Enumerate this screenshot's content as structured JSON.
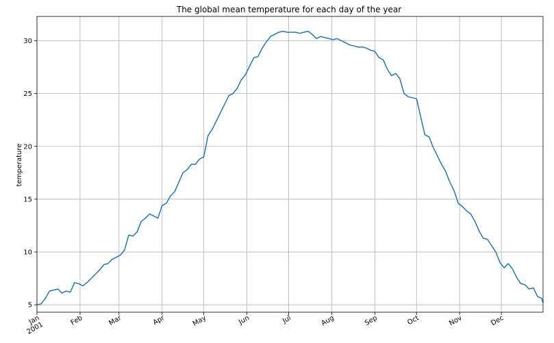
{
  "chart_data": {
    "type": "line",
    "title": "The global mean temperature for each day of the year",
    "xlabel": "",
    "ylabel": "temperature",
    "xlim": [
      "2001-01-01",
      "2001-12-31"
    ],
    "ylim": [
      4.3,
      32.3
    ],
    "grid": true,
    "legend": "none",
    "line_color": "#1f77b4",
    "y_ticks": [
      5,
      10,
      15,
      20,
      25,
      30
    ],
    "x_ticks": [
      {
        "date": "2001-01-01",
        "label": "Jan",
        "sublabel": "2001"
      },
      {
        "date": "2001-02-01",
        "label": "Feb"
      },
      {
        "date": "2001-03-01",
        "label": "Mar"
      },
      {
        "date": "2001-04-01",
        "label": "Apr"
      },
      {
        "date": "2001-05-01",
        "label": "May"
      },
      {
        "date": "2001-06-01",
        "label": "Jun"
      },
      {
        "date": "2001-07-01",
        "label": "Jul"
      },
      {
        "date": "2001-08-01",
        "label": "Aug"
      },
      {
        "date": "2001-09-01",
        "label": "Sep"
      },
      {
        "date": "2001-10-01",
        "label": "Oct"
      },
      {
        "date": "2001-11-01",
        "label": "Nov"
      },
      {
        "date": "2001-12-01",
        "label": "Dec"
      }
    ],
    "series": [
      {
        "points": [
          [
            "2001-01-01",
            5.0
          ],
          [
            "2001-01-04",
            5.1
          ],
          [
            "2001-01-07",
            5.6
          ],
          [
            "2001-01-10",
            6.3
          ],
          [
            "2001-01-13",
            6.4
          ],
          [
            "2001-01-16",
            6.5
          ],
          [
            "2001-01-19",
            6.1
          ],
          [
            "2001-01-22",
            6.3
          ],
          [
            "2001-01-25",
            6.2
          ],
          [
            "2001-01-28",
            7.1
          ],
          [
            "2001-01-31",
            7.0
          ],
          [
            "2001-02-03",
            6.8
          ],
          [
            "2001-02-06",
            7.1
          ],
          [
            "2001-02-09",
            7.5
          ],
          [
            "2001-02-12",
            7.9
          ],
          [
            "2001-02-15",
            8.3
          ],
          [
            "2001-02-18",
            8.8
          ],
          [
            "2001-02-21",
            8.9
          ],
          [
            "2001-02-24",
            9.3
          ],
          [
            "2001-02-27",
            9.5
          ],
          [
            "2001-03-02",
            9.7
          ],
          [
            "2001-03-05",
            10.2
          ],
          [
            "2001-03-08",
            11.6
          ],
          [
            "2001-03-11",
            11.5
          ],
          [
            "2001-03-14",
            11.9
          ],
          [
            "2001-03-17",
            12.9
          ],
          [
            "2001-03-20",
            13.2
          ],
          [
            "2001-03-23",
            13.6
          ],
          [
            "2001-03-26",
            13.4
          ],
          [
            "2001-03-29",
            13.2
          ],
          [
            "2001-04-01",
            14.4
          ],
          [
            "2001-04-04",
            14.6
          ],
          [
            "2001-04-07",
            15.3
          ],
          [
            "2001-04-10",
            15.7
          ],
          [
            "2001-04-13",
            16.6
          ],
          [
            "2001-04-16",
            17.5
          ],
          [
            "2001-04-19",
            17.8
          ],
          [
            "2001-04-22",
            18.3
          ],
          [
            "2001-04-25",
            18.3
          ],
          [
            "2001-04-28",
            18.8
          ],
          [
            "2001-05-01",
            19.0
          ],
          [
            "2001-05-04",
            21.0
          ],
          [
            "2001-05-07",
            21.6
          ],
          [
            "2001-05-10",
            22.4
          ],
          [
            "2001-05-13",
            23.2
          ],
          [
            "2001-05-16",
            24.0
          ],
          [
            "2001-05-19",
            24.8
          ],
          [
            "2001-05-22",
            25.0
          ],
          [
            "2001-05-25",
            25.5
          ],
          [
            "2001-05-28",
            26.3
          ],
          [
            "2001-05-31",
            26.8
          ],
          [
            "2001-06-03",
            27.6
          ],
          [
            "2001-06-06",
            28.4
          ],
          [
            "2001-06-09",
            28.5
          ],
          [
            "2001-06-12",
            29.3
          ],
          [
            "2001-06-15",
            29.9
          ],
          [
            "2001-06-18",
            30.4
          ],
          [
            "2001-06-21",
            30.6
          ],
          [
            "2001-06-24",
            30.8
          ],
          [
            "2001-06-27",
            30.9
          ],
          [
            "2001-06-30",
            30.8
          ],
          [
            "2001-07-03",
            30.8
          ],
          [
            "2001-07-06",
            30.8
          ],
          [
            "2001-07-09",
            30.7
          ],
          [
            "2001-07-12",
            30.8
          ],
          [
            "2001-07-15",
            30.9
          ],
          [
            "2001-07-18",
            30.6
          ],
          [
            "2001-07-21",
            30.2
          ],
          [
            "2001-07-24",
            30.4
          ],
          [
            "2001-07-27",
            30.3
          ],
          [
            "2001-07-30",
            30.2
          ],
          [
            "2001-08-02",
            30.1
          ],
          [
            "2001-08-05",
            30.2
          ],
          [
            "2001-08-08",
            30.0
          ],
          [
            "2001-08-11",
            29.8
          ],
          [
            "2001-08-14",
            29.6
          ],
          [
            "2001-08-17",
            29.5
          ],
          [
            "2001-08-20",
            29.4
          ],
          [
            "2001-08-23",
            29.4
          ],
          [
            "2001-08-26",
            29.3
          ],
          [
            "2001-08-29",
            29.1
          ],
          [
            "2001-09-01",
            29.0
          ],
          [
            "2001-09-04",
            28.4
          ],
          [
            "2001-09-07",
            28.2
          ],
          [
            "2001-09-10",
            27.3
          ],
          [
            "2001-09-13",
            26.7
          ],
          [
            "2001-09-16",
            26.9
          ],
          [
            "2001-09-19",
            26.4
          ],
          [
            "2001-09-22",
            25.0
          ],
          [
            "2001-09-25",
            24.7
          ],
          [
            "2001-09-28",
            24.6
          ],
          [
            "2001-10-01",
            24.5
          ],
          [
            "2001-10-04",
            22.8
          ],
          [
            "2001-10-07",
            21.1
          ],
          [
            "2001-10-10",
            20.9
          ],
          [
            "2001-10-13",
            19.9
          ],
          [
            "2001-10-16",
            19.1
          ],
          [
            "2001-10-19",
            18.3
          ],
          [
            "2001-10-22",
            17.6
          ],
          [
            "2001-10-25",
            16.6
          ],
          [
            "2001-10-28",
            15.8
          ],
          [
            "2001-10-31",
            14.6
          ],
          [
            "2001-11-03",
            14.3
          ],
          [
            "2001-11-06",
            13.9
          ],
          [
            "2001-11-09",
            13.6
          ],
          [
            "2001-11-12",
            12.9
          ],
          [
            "2001-11-15",
            12.0
          ],
          [
            "2001-11-18",
            11.3
          ],
          [
            "2001-11-21",
            11.2
          ],
          [
            "2001-11-24",
            10.6
          ],
          [
            "2001-11-27",
            10.0
          ],
          [
            "2001-11-30",
            9.0
          ],
          [
            "2001-12-03",
            8.5
          ],
          [
            "2001-12-06",
            8.9
          ],
          [
            "2001-12-09",
            8.4
          ],
          [
            "2001-12-12",
            7.6
          ],
          [
            "2001-12-15",
            7.0
          ],
          [
            "2001-12-18",
            6.9
          ],
          [
            "2001-12-21",
            6.5
          ],
          [
            "2001-12-24",
            6.6
          ],
          [
            "2001-12-27",
            5.8
          ],
          [
            "2001-12-30",
            5.6
          ],
          [
            "2001-12-31",
            5.2
          ]
        ]
      }
    ]
  }
}
